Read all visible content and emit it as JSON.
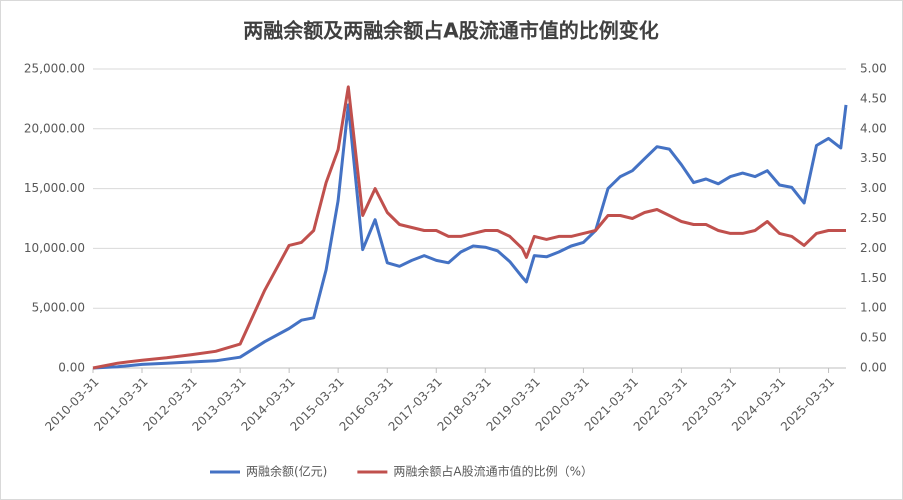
{
  "chart_data": {
    "type": "line",
    "title": "两融余额及两融余额占A股流通市值的比例变化",
    "x": [
      "2010-03-31",
      "2010-09-30",
      "2011-03-31",
      "2011-09-30",
      "2012-03-31",
      "2012-09-30",
      "2013-03-31",
      "2013-09-30",
      "2014-03-31",
      "2014-06-30",
      "2014-09-30",
      "2014-12-31",
      "2015-03-31",
      "2015-06-15",
      "2015-09-30",
      "2015-12-31",
      "2016-03-31",
      "2016-06-30",
      "2016-09-30",
      "2016-12-31",
      "2017-03-31",
      "2017-06-30",
      "2017-09-30",
      "2017-12-31",
      "2018-03-31",
      "2018-06-30",
      "2018-09-30",
      "2018-12-31",
      "2019-01-31",
      "2019-03-31",
      "2019-06-30",
      "2019-09-30",
      "2019-12-31",
      "2020-03-31",
      "2020-06-30",
      "2020-09-30",
      "2020-12-31",
      "2021-03-31",
      "2021-06-30",
      "2021-09-30",
      "2021-12-31",
      "2022-03-31",
      "2022-06-30",
      "2022-09-30",
      "2022-12-31",
      "2023-03-31",
      "2023-06-30",
      "2023-09-30",
      "2023-12-31",
      "2024-03-31",
      "2024-06-30",
      "2024-09-30",
      "2024-12-31",
      "2025-03-31",
      "2025-06-30",
      "2025-08-08"
    ],
    "xlim": [
      "2010-03-31",
      "2025-08-08"
    ],
    "xticks": [
      "2010-03-31",
      "2011-03-31",
      "2012-03-31",
      "2013-03-31",
      "2014-03-31",
      "2015-03-31",
      "2016-03-31",
      "2017-03-31",
      "2018-03-31",
      "2019-03-31",
      "2020-03-31",
      "2021-03-31",
      "2022-03-31",
      "2023-03-31",
      "2024-03-31",
      "2025-03-31"
    ],
    "ylim": [
      0,
      25000
    ],
    "yticks": [
      {
        "value": 0,
        "label": "0.00"
      },
      {
        "value": 5000,
        "label": "5,000.00"
      },
      {
        "value": 10000,
        "label": "10,000.00"
      },
      {
        "value": 15000,
        "label": "15,000.00"
      },
      {
        "value": 20000,
        "label": "20,000.00"
      },
      {
        "value": 25000,
        "label": "25,000.00"
      }
    ],
    "y2lim": [
      0,
      5
    ],
    "y2ticks": [
      {
        "value": 0,
        "label": "0.00"
      },
      {
        "value": 0.5,
        "label": "0.50"
      },
      {
        "value": 1,
        "label": "1.00"
      },
      {
        "value": 1.5,
        "label": "1.50"
      },
      {
        "value": 2,
        "label": "2.00"
      },
      {
        "value": 2.5,
        "label": "2.50"
      },
      {
        "value": 3,
        "label": "3.00"
      },
      {
        "value": 3.5,
        "label": "3.50"
      },
      {
        "value": 4,
        "label": "4.00"
      },
      {
        "value": 4.5,
        "label": "4.50"
      },
      {
        "value": 5,
        "label": "5.00"
      }
    ],
    "grid": true,
    "legend": "bottom",
    "series": [
      {
        "name": "两融余额(亿元)",
        "color": "#4472c4",
        "axis": "y",
        "values": [
          0,
          100,
          300,
          400,
          500,
          600,
          900,
          2200,
          3300,
          4000,
          4200,
          8200,
          14000,
          22000,
          9900,
          12400,
          8800,
          8500,
          9000,
          9400,
          9000,
          8800,
          9700,
          10200,
          10100,
          9800,
          8900,
          7600,
          7200,
          9400,
          9300,
          9700,
          10200,
          10500,
          11500,
          15000,
          16000,
          16500,
          17500,
          18500,
          18300,
          17000,
          15500,
          15800,
          15400,
          16000,
          16300,
          16000,
          16500,
          15300,
          15100,
          13800,
          18600,
          19200,
          18400,
          22000
        ]
      },
      {
        "name": "两融余额占A股流通市值的比例（%）",
        "color": "#c0504d",
        "axis": "y2",
        "values": [
          0,
          0.08,
          0.13,
          0.17,
          0.22,
          0.28,
          0.4,
          1.3,
          2.05,
          2.1,
          2.3,
          3.1,
          3.65,
          4.7,
          2.55,
          3.0,
          2.6,
          2.4,
          2.35,
          2.3,
          2.3,
          2.2,
          2.2,
          2.25,
          2.3,
          2.3,
          2.2,
          2.0,
          1.85,
          2.2,
          2.15,
          2.2,
          2.2,
          2.25,
          2.3,
          2.55,
          2.55,
          2.5,
          2.6,
          2.65,
          2.55,
          2.45,
          2.4,
          2.4,
          2.3,
          2.25,
          2.25,
          2.3,
          2.45,
          2.25,
          2.2,
          2.05,
          2.25,
          2.3,
          2.3,
          2.3
        ]
      }
    ]
  }
}
